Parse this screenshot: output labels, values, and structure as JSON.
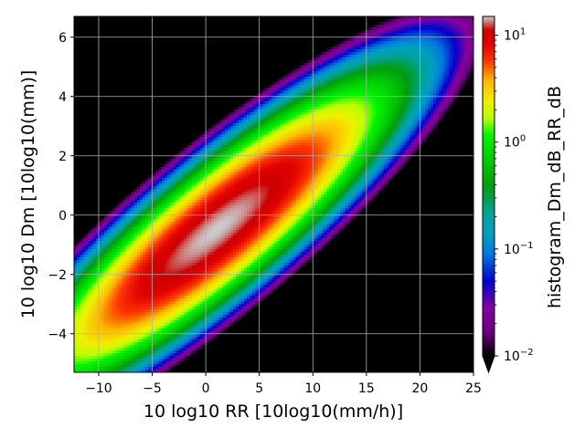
{
  "chart_data": {
    "type": "heatmap",
    "title": "",
    "xlabel": "10 log10 RR [10log10(mm/h)]",
    "ylabel": "10 log10 Dm [10log10(mm)]",
    "xlim": [
      -12.3,
      25
    ],
    "ylim": [
      -5.3,
      6.7
    ],
    "xticks": [
      -10,
      -5,
      0,
      5,
      10,
      15,
      20,
      25
    ],
    "xtick_labels": [
      "−10",
      "−5",
      "0",
      "5",
      "10",
      "15",
      "20",
      "25"
    ],
    "yticks": [
      -4,
      -2,
      0,
      2,
      4,
      6
    ],
    "ytick_labels": [
      "−4",
      "−2",
      "0",
      "2",
      "4",
      "6"
    ],
    "grid": true,
    "background_color": "#000000",
    "colormap": "nipy_spectral",
    "colorbar": {
      "label": "histogram_Dm_dB_RR_dB",
      "scale": "log",
      "range": [
        0.01,
        15
      ],
      "extend": "min",
      "ticks": [
        {
          "value": 0.01,
          "base": "10",
          "exp": "−2"
        },
        {
          "value": 0.1,
          "base": "10",
          "exp": "−1"
        },
        {
          "value": 1,
          "base": "10",
          "exp": "0"
        },
        {
          "value": 10,
          "base": "10",
          "exp": "1"
        }
      ]
    },
    "distribution": {
      "peak_value": 15,
      "peak_center": [
        1.0,
        -0.5
      ],
      "correlation_slope": 0.27,
      "extent_x": [
        -12.3,
        19.5
      ],
      "extent_y": [
        -5.0,
        5.1
      ]
    }
  }
}
